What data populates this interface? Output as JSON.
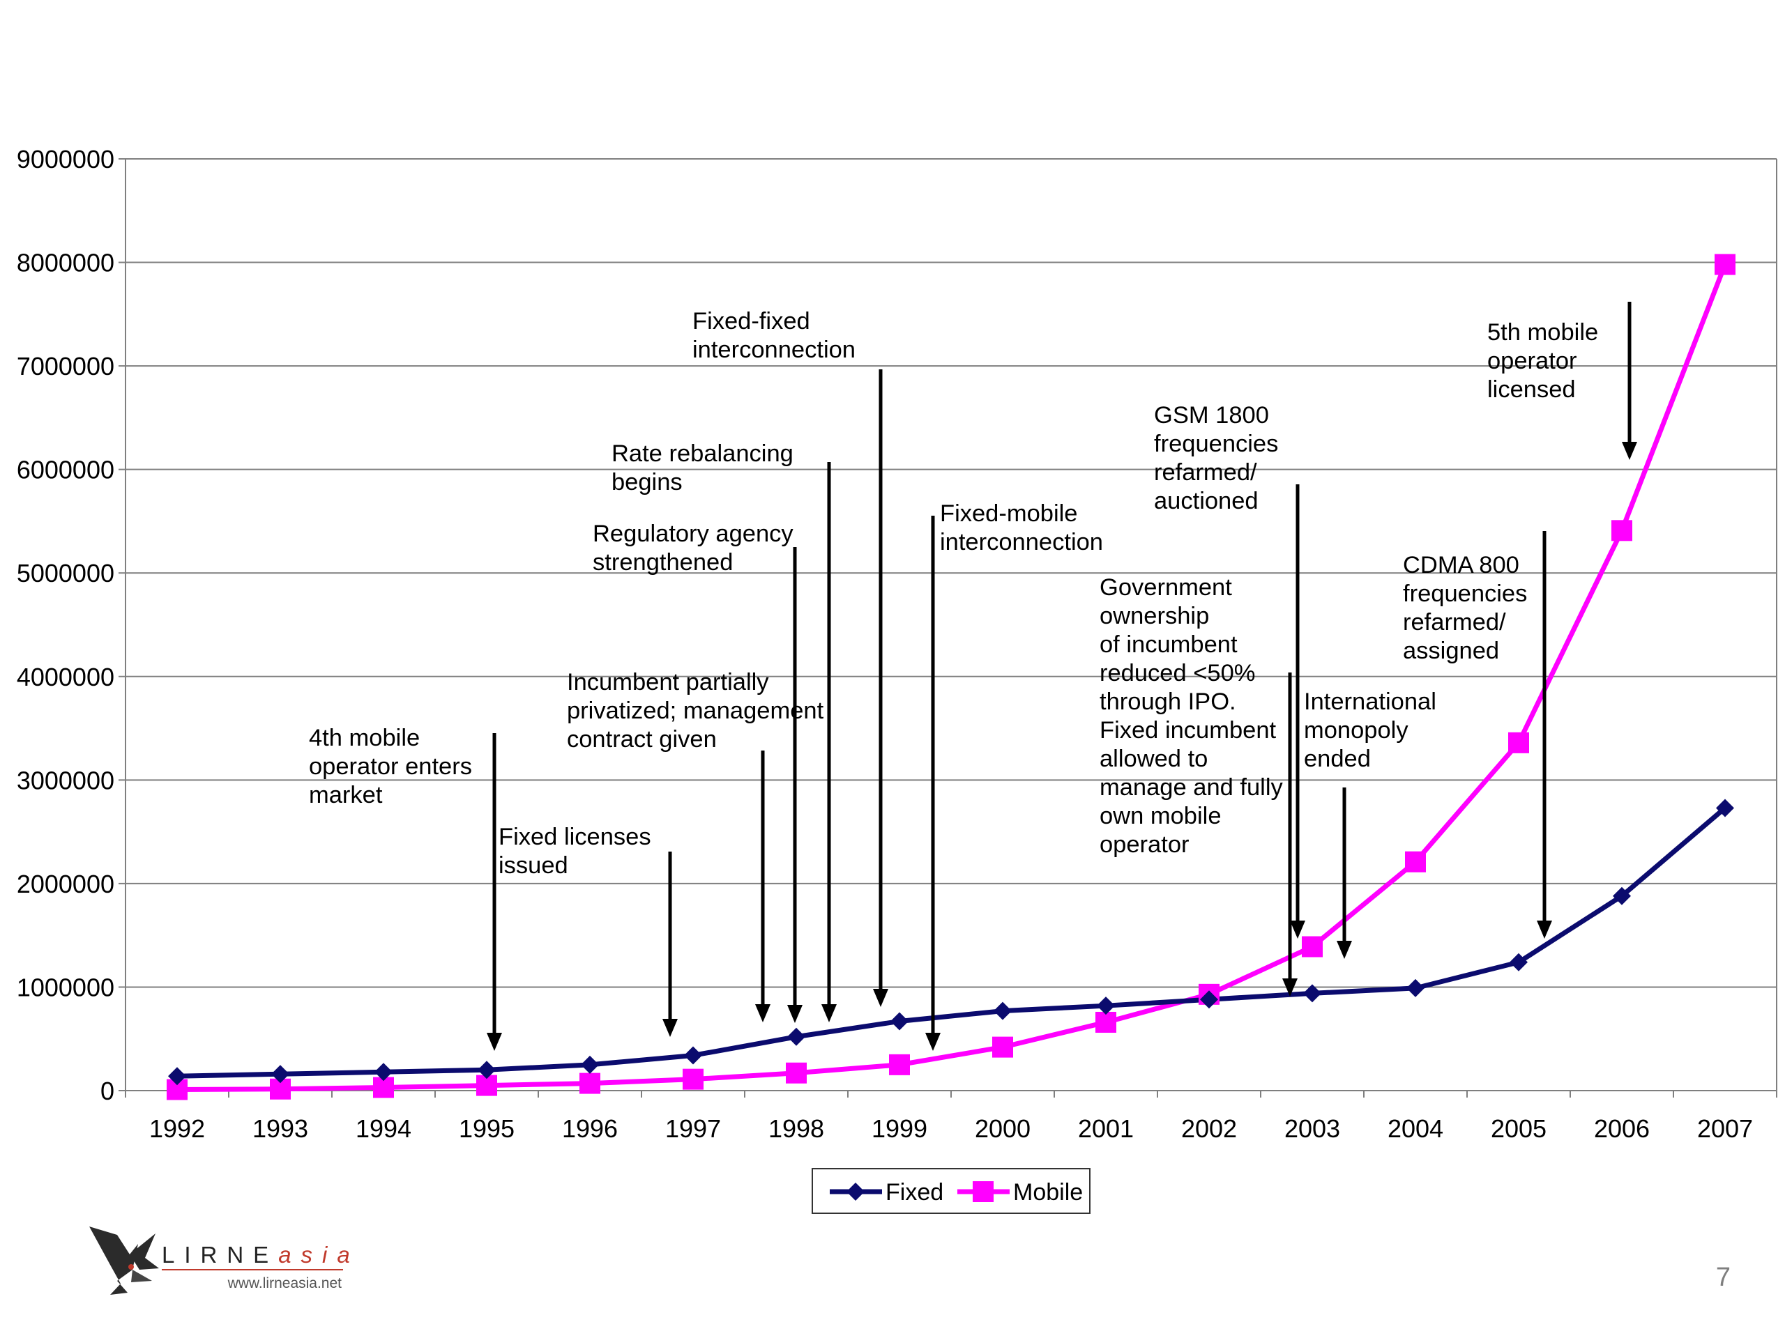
{
  "chart_data": {
    "type": "line",
    "categories": [
      "1992",
      "1993",
      "1994",
      "1995",
      "1996",
      "1997",
      "1998",
      "1999",
      "2000",
      "2001",
      "2002",
      "2003",
      "2004",
      "2005",
      "2006",
      "2007"
    ],
    "series": [
      {
        "name": "Fixed",
        "color": "#0b0b6e",
        "marker": "diamond",
        "values": [
          140000,
          160000,
          180000,
          200000,
          250000,
          340000,
          520000,
          670000,
          770000,
          820000,
          880000,
          940000,
          990000,
          1240000,
          1880000,
          2730000
        ]
      },
      {
        "name": "Mobile",
        "color": "#ff00ff",
        "marker": "square",
        "values": [
          10000,
          15000,
          30000,
          50000,
          70000,
          110000,
          170000,
          250000,
          420000,
          660000,
          930000,
          1390000,
          2210000,
          3360000,
          5410000,
          7980000
        ]
      }
    ],
    "ylim": [
      0,
      9000000
    ],
    "yticks": [
      "0",
      "1000000",
      "2000000",
      "3000000",
      "4000000",
      "5000000",
      "6000000",
      "7000000",
      "8000000",
      "9000000"
    ],
    "grid": true,
    "legend_position": "bottom",
    "annotations": [
      {
        "lines": [
          "4th mobile",
          "operator enters",
          "market"
        ]
      },
      {
        "lines": [
          "Fixed licenses",
          "issued"
        ]
      },
      {
        "lines": [
          "Incumbent partially",
          "privatized; management",
          "contract given"
        ]
      },
      {
        "lines": [
          "Regulatory agency",
          "strengthened"
        ]
      },
      {
        "lines": [
          "Rate rebalancing",
          "begins"
        ]
      },
      {
        "lines": [
          "Fixed-fixed",
          "interconnection"
        ]
      },
      {
        "lines": [
          "Fixed-mobile",
          "interconnection"
        ]
      },
      {
        "lines": [
          "Government",
          "ownership",
          "of incumbent",
          "reduced <50%",
          "through IPO.",
          "Fixed incumbent",
          "allowed to",
          "manage and fully",
          "own mobile",
          "operator"
        ]
      },
      {
        "lines": [
          "GSM 1800",
          "frequencies",
          "refarmed/",
          "auctioned"
        ]
      },
      {
        "lines": [
          "International",
          "monopoly",
          "ended"
        ]
      },
      {
        "lines": [
          "CDMA 800",
          "frequencies",
          "refarmed/",
          "assigned"
        ]
      },
      {
        "lines": [
          "5th mobile",
          "operator",
          "licensed"
        ]
      }
    ]
  },
  "logo": {
    "brand": "LIRNE",
    "brand_suffix": "asia",
    "url": "www.lirneasia.net"
  },
  "page_number": "7"
}
